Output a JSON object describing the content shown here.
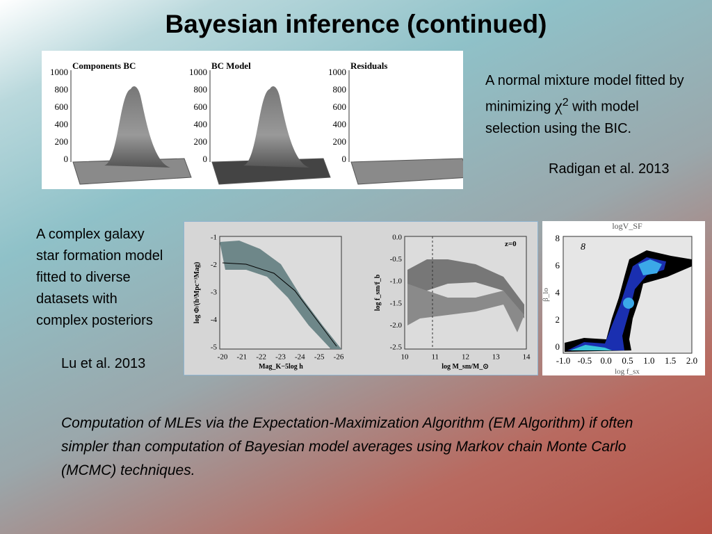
{
  "title": "Bayesian inference (continued)",
  "figure_1": {
    "panels": [
      {
        "title": "Components BC",
        "yticks": [
          "1000",
          "800",
          "600",
          "400",
          "200",
          "0"
        ]
      },
      {
        "title": "BC Model",
        "yticks": [
          "1000",
          "800",
          "600",
          "400",
          "200",
          "0"
        ]
      },
      {
        "title": "Residuals",
        "yticks": [
          "1000",
          "800",
          "600",
          "400",
          "200",
          "0"
        ]
      }
    ]
  },
  "note_1": {
    "text_before": "A normal mixture model fitted by minimizing ",
    "symbol": "χ",
    "superscript": "2",
    "text_after": " with model selection using the BIC.",
    "citation": "Radigan et al. 2013"
  },
  "note_2": {
    "text": "A complex galaxy star formation model fitted to diverse datasets with complex posteriors",
    "citation": "Lu et al. 2013"
  },
  "figure_2": {
    "left": {
      "ylabel": "log Φ/(h³Mpc⁻³Mag)",
      "xlabel": "Mag_K−5log h",
      "yticks": [
        "-1",
        "-2",
        "-3",
        "-4",
        "-5"
      ],
      "xticks": [
        "-20",
        "-21",
        "-22",
        "-23",
        "-24",
        "-25",
        "-26"
      ]
    },
    "right": {
      "ylabel": "log f_sm/f_b",
      "xlabel": "log M_sm/M_⊙",
      "annotation": "z=0",
      "yticks": [
        "0.0",
        "-0.5",
        "-1.0",
        "-1.5",
        "-2.0",
        "-2.5"
      ],
      "xticks": [
        "10",
        "11",
        "12",
        "13",
        "14"
      ]
    }
  },
  "figure_3": {
    "title": "logV_SF",
    "annotation": "8",
    "ylabel": "β_lo",
    "xlabel": "log f_sx",
    "yticks": [
      "0",
      "2",
      "4",
      "6",
      "8"
    ],
    "xticks": [
      "-1.0",
      "-0.5",
      "0.0",
      "0.5",
      "1.0",
      "1.5",
      "2.0"
    ]
  },
  "summary": "Computation of MLEs via the Expectation-Maximization Algorithm (EM Algorithm) if often simpler than computation of Bayesian model averages using Markov chain Monte Carlo (MCMC) techniques."
}
